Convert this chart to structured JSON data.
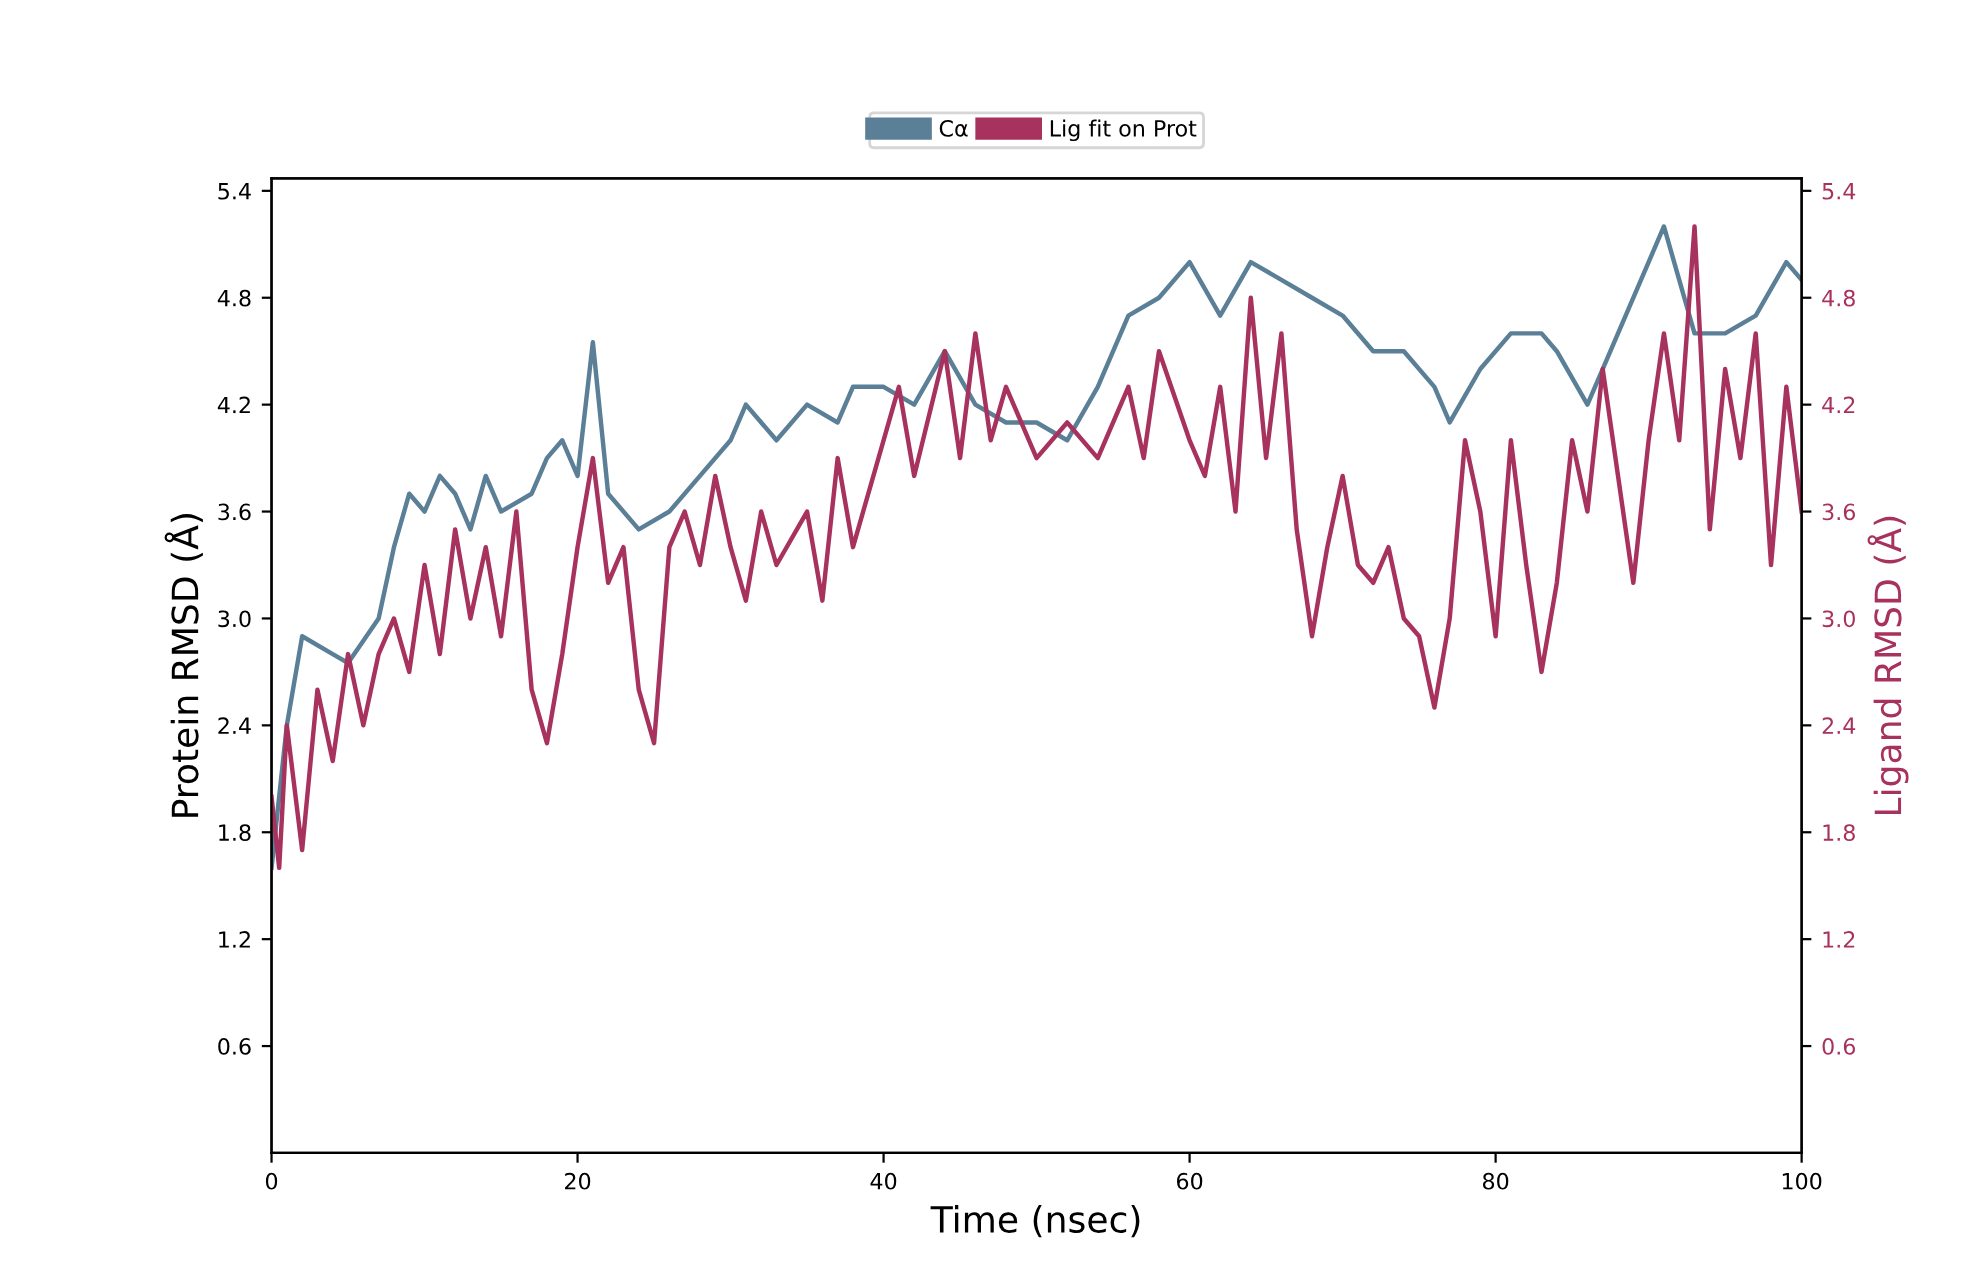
{
  "chart_data": {
    "type": "line",
    "xlabel": "Time (nsec)",
    "ylabel": "Protein RMSD (Å)",
    "y2label": "Ligand RMSD (Å)",
    "legend": "top",
    "grid": false,
    "marker": "none",
    "line_style": "solid",
    "xlim": [
      0,
      100
    ],
    "xticks": [
      0,
      20,
      40,
      60,
      80,
      100
    ],
    "ylim": [
      0,
      5.47
    ],
    "yticks": [
      0.6,
      1.2,
      1.8,
      2.4,
      {
        "value": 3,
        "label": "3.0"
      },
      3.6,
      4.2,
      4.8,
      5.4
    ],
    "y2lim": [
      0,
      5.47
    ],
    "y2ticks": [
      0.6,
      1.2,
      1.8,
      2.4,
      {
        "value": 3,
        "label": "3.0"
      },
      3.6,
      4.2,
      4.8,
      5.4
    ],
    "series": [
      {
        "name": "Cα",
        "color": "#5a7f96",
        "x": [
          0,
          1,
          2,
          4,
          5,
          7,
          8,
          9,
          10,
          11,
          12,
          13,
          14,
          15,
          17,
          18,
          19,
          20,
          21,
          22,
          24,
          26,
          28,
          30,
          31,
          33,
          35,
          37,
          38,
          40,
          42,
          44,
          46,
          48,
          50,
          52,
          54,
          56,
          58,
          60,
          62,
          64,
          66,
          68,
          70,
          72,
          74,
          76,
          77,
          79,
          81,
          83,
          84,
          86,
          88,
          90,
          91,
          93,
          95,
          97,
          99,
          100
        ],
        "values": [
          1.6,
          2.4,
          2.9,
          2.8,
          2.75,
          3.0,
          3.4,
          3.7,
          3.6,
          3.8,
          3.7,
          3.5,
          3.8,
          3.6,
          3.7,
          3.9,
          4.0,
          3.8,
          4.55,
          3.7,
          3.5,
          3.6,
          3.8,
          4.0,
          4.2,
          4.0,
          4.2,
          4.1,
          4.3,
          4.3,
          4.2,
          4.5,
          4.2,
          4.1,
          4.1,
          4.0,
          4.3,
          4.7,
          4.8,
          5.0,
          4.7,
          5.0,
          4.9,
          4.8,
          4.7,
          4.5,
          4.5,
          4.3,
          4.1,
          4.4,
          4.6,
          4.6,
          4.5,
          4.2,
          4.6,
          5.0,
          5.2,
          4.6,
          4.6,
          4.7,
          5.0,
          4.9
        ]
      },
      {
        "name": "Lig fit on Prot",
        "axis": "y2",
        "color": "#a8325e",
        "x": [
          0,
          0.5,
          1,
          2,
          3,
          4,
          5,
          6,
          7,
          8,
          9,
          10,
          11,
          12,
          13,
          14,
          15,
          16,
          17,
          18,
          19,
          20,
          21,
          22,
          23,
          24,
          25,
          26,
          27,
          28,
          29,
          30,
          31,
          32,
          33,
          35,
          36,
          37,
          38,
          40,
          41,
          42,
          44,
          45,
          46,
          47,
          48,
          50,
          52,
          54,
          56,
          57,
          58,
          60,
          61,
          62,
          63,
          64,
          65,
          66,
          67,
          68,
          69,
          70,
          71,
          72,
          73,
          74,
          75,
          76,
          77,
          78,
          79,
          80,
          81,
          82,
          83,
          84,
          85,
          86,
          87,
          88,
          89,
          90,
          91,
          92,
          93,
          94,
          95,
          96,
          97,
          98,
          99,
          100
        ],
        "values": [
          2.0,
          1.6,
          2.4,
          1.7,
          2.6,
          2.2,
          2.8,
          2.4,
          2.8,
          3.0,
          2.7,
          3.3,
          2.8,
          3.5,
          3.0,
          3.4,
          2.9,
          3.6,
          2.6,
          2.3,
          2.8,
          3.4,
          3.9,
          3.2,
          3.4,
          2.6,
          2.3,
          3.4,
          3.6,
          3.3,
          3.8,
          3.4,
          3.1,
          3.6,
          3.3,
          3.6,
          3.1,
          3.9,
          3.4,
          4.0,
          4.3,
          3.8,
          4.5,
          3.9,
          4.6,
          4.0,
          4.3,
          3.9,
          4.1,
          3.9,
          4.3,
          3.9,
          4.5,
          4.0,
          3.8,
          4.3,
          3.6,
          4.8,
          3.9,
          4.6,
          3.5,
          2.9,
          3.4,
          3.8,
          3.3,
          3.2,
          3.4,
          3.0,
          2.9,
          2.5,
          3.0,
          4.0,
          3.6,
          2.9,
          4.0,
          3.3,
          2.7,
          3.2,
          4.0,
          3.6,
          4.4,
          3.8,
          3.2,
          4.0,
          4.6,
          4.0,
          5.2,
          3.5,
          4.4,
          3.9,
          4.6,
          3.3,
          4.3,
          3.6
        ]
      }
    ]
  }
}
